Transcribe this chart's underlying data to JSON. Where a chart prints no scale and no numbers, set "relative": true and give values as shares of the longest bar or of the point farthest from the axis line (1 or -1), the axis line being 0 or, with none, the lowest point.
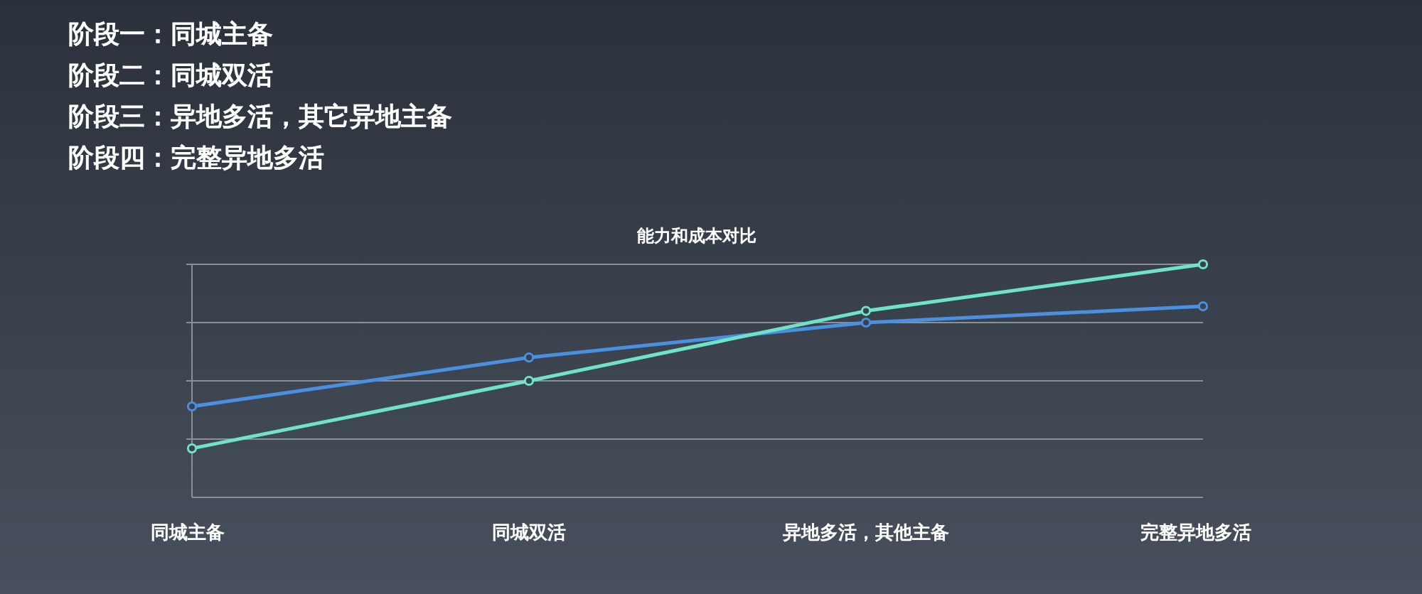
{
  "chart_data": {
    "type": "line",
    "title": "能力和成本对比",
    "annotations": [
      "阶段一：同城主备",
      "阶段二：同城双活",
      "阶段三：异地多活，其它异地主备",
      "阶段四：完整异地多活"
    ],
    "categories": [
      "同城主备",
      "同城双活",
      "异地多活，其他主备",
      "完整异地多活"
    ],
    "relative": true,
    "grid": "y",
    "marker": "circle",
    "line_style": "solid",
    "series": [
      {
        "color": "#4a8fe0",
        "values": [
          0.39,
          0.6,
          0.75,
          0.82
        ]
      },
      {
        "color": "#6ee3c6",
        "values": [
          0.21,
          0.5,
          0.8,
          1
        ]
      }
    ]
  }
}
